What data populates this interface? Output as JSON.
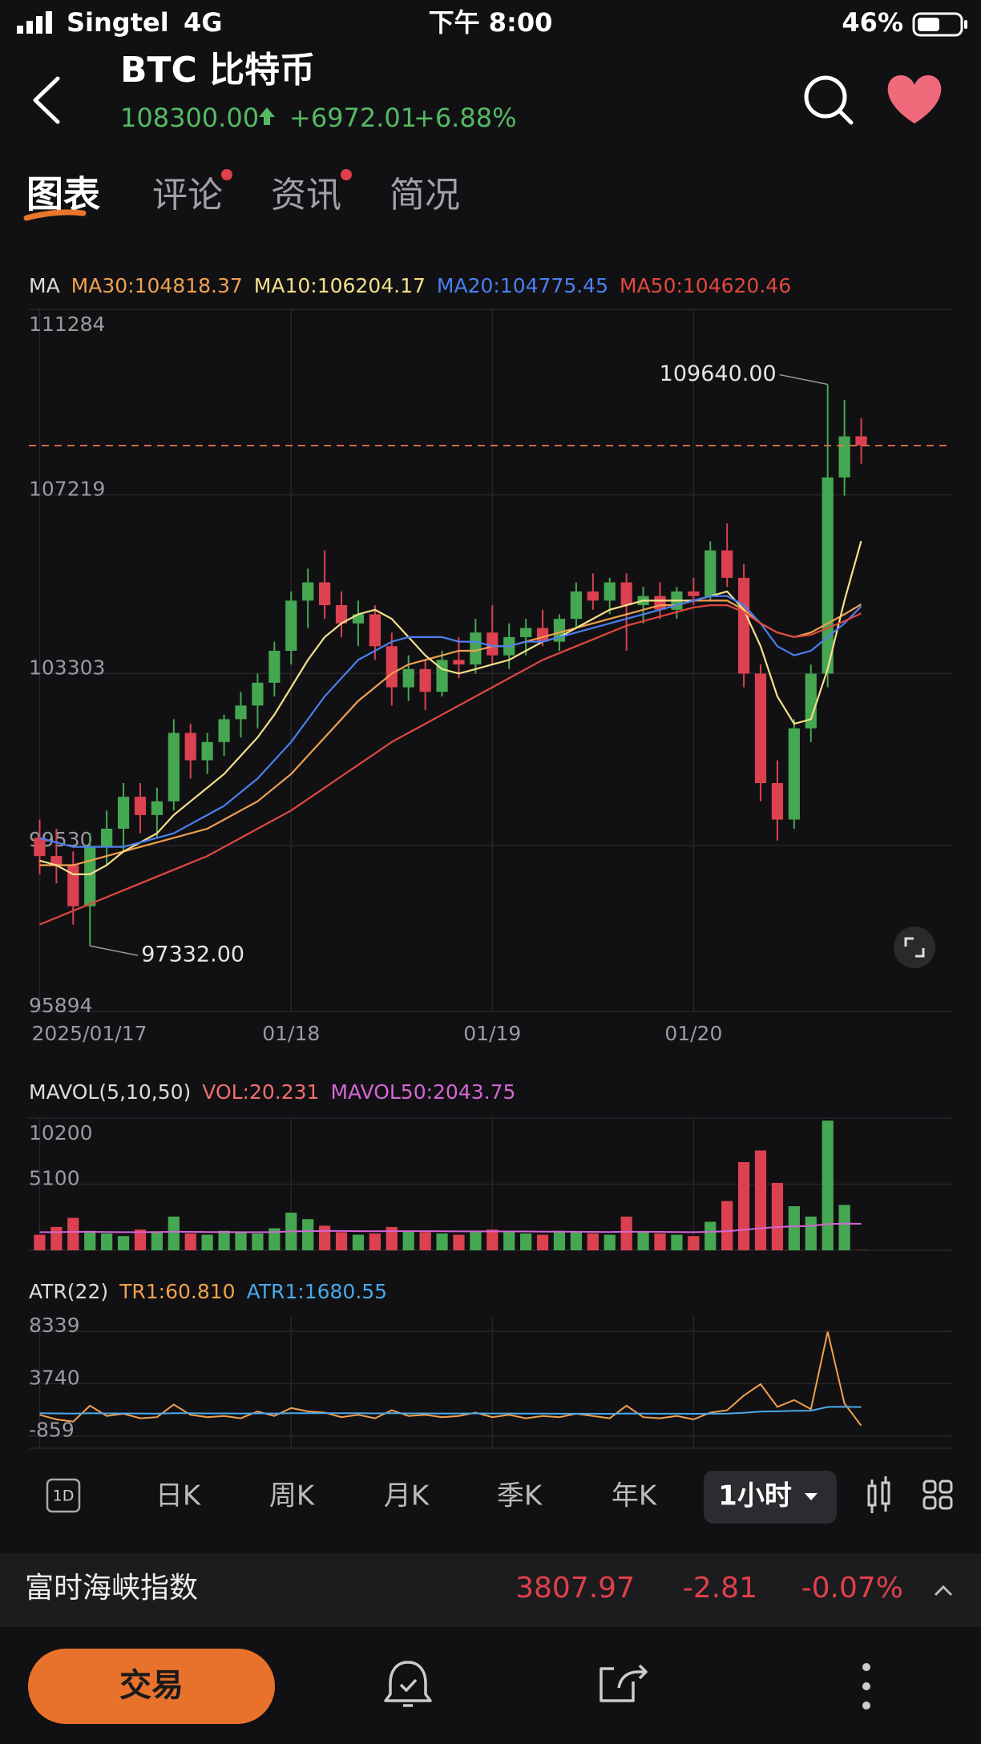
{
  "status_bar": {
    "carrier": "Singtel",
    "network": "4G",
    "time": "下午 8:00",
    "battery": "46%"
  },
  "header": {
    "title": "BTC 比特币",
    "price": "108300.00",
    "change": "+6972.01",
    "change_pct": "+6.88%"
  },
  "tabs": [
    "图表",
    "评论",
    "资讯",
    "简况"
  ],
  "chart_data": {
    "type": "candlestick",
    "ma_label": "MA",
    "series": [
      {
        "name": "MA30:104818.37",
        "color": "#f0a050",
        "values": [
          99100,
          99100,
          99100,
          99200,
          99300,
          99400,
          99500,
          99600,
          99700,
          99800,
          99900,
          100100,
          100300,
          100500,
          100800,
          101100,
          101500,
          101900,
          102300,
          102700,
          103000,
          103300,
          103500,
          103600,
          103700,
          103800,
          103800,
          103900,
          103900,
          104000,
          104100,
          104200,
          104300,
          104400,
          104500,
          104600,
          104700,
          104800,
          104800,
          104900,
          104900,
          104900,
          104700,
          104400,
          104200,
          104100,
          104200,
          104400,
          104600,
          104818.37
        ]
      },
      {
        "name": "MA10:106204.17",
        "color": "#f5e08a",
        "values": [
          99200,
          99100,
          98900,
          98900,
          99100,
          99400,
          99600,
          99800,
          100200,
          100500,
          100800,
          101100,
          101500,
          101900,
          102400,
          103000,
          103600,
          104100,
          104400,
          104600,
          104700,
          104500,
          104100,
          103700,
          103400,
          103300,
          103400,
          103500,
          103600,
          103800,
          104000,
          104100,
          104300,
          104500,
          104700,
          104800,
          104900,
          104900,
          104900,
          104900,
          105000,
          105100,
          104700,
          103900,
          102800,
          102200,
          102300,
          103400,
          104900,
          106204.17
        ]
      },
      {
        "name": "MA20:104775.45",
        "color": "#4a7ff0",
        "values": [
          99700,
          99600,
          99500,
          99500,
          99500,
          99500,
          99600,
          99700,
          99800,
          100000,
          100200,
          100400,
          100700,
          101000,
          101400,
          101800,
          102300,
          102800,
          103200,
          103600,
          103800,
          104000,
          104100,
          104100,
          104100,
          104000,
          104000,
          103900,
          103900,
          104000,
          104000,
          104100,
          104200,
          104300,
          104400,
          104500,
          104600,
          104700,
          104800,
          104900,
          105000,
          105000,
          104800,
          104400,
          103900,
          103700,
          103800,
          104100,
          104400,
          104775.45
        ]
      },
      {
        "name": "MA50:104620.46",
        "color": "#e0483f",
        "values": [
          97800,
          97950,
          98100,
          98250,
          98400,
          98550,
          98700,
          98850,
          99000,
          99150,
          99300,
          99500,
          99700,
          99900,
          100100,
          100300,
          100550,
          100800,
          101050,
          101300,
          101550,
          101800,
          102000,
          102200,
          102400,
          102600,
          102800,
          103000,
          103200,
          103400,
          103600,
          103750,
          103900,
          104050,
          104200,
          104350,
          104450,
          104550,
          104650,
          104750,
          104800,
          104800,
          104650,
          104400,
          104200,
          104100,
          104150,
          104300,
          104450,
          104620.46
        ]
      }
    ],
    "candles": [
      [
        99700,
        100100,
        98900,
        99300
      ],
      [
        99300,
        99900,
        98700,
        99100
      ],
      [
        99100,
        99400,
        97800,
        98200
      ],
      [
        98200,
        99800,
        97332,
        99500
      ],
      [
        99500,
        100300,
        99100,
        99900
      ],
      [
        99900,
        100900,
        99400,
        100600
      ],
      [
        100600,
        100900,
        99800,
        100200
      ],
      [
        100200,
        100800,
        99700,
        100500
      ],
      [
        100500,
        102300,
        100300,
        102000
      ],
      [
        102000,
        102200,
        101000,
        101400
      ],
      [
        101400,
        102000,
        101100,
        101800
      ],
      [
        101800,
        102400,
        101500,
        102300
      ],
      [
        102300,
        102900,
        101900,
        102600
      ],
      [
        102600,
        103300,
        102100,
        103100
      ],
      [
        103100,
        104000,
        102800,
        103800
      ],
      [
        103800,
        105100,
        103500,
        104900
      ],
      [
        104900,
        105600,
        104300,
        105300
      ],
      [
        105300,
        106000,
        104500,
        104800
      ],
      [
        104800,
        105100,
        104100,
        104400
      ],
      [
        104400,
        104900,
        103900,
        104600
      ],
      [
        104600,
        104800,
        103600,
        103900
      ],
      [
        103900,
        104200,
        102600,
        103000
      ],
      [
        103000,
        103700,
        102700,
        103400
      ],
      [
        103400,
        103600,
        102500,
        102900
      ],
      [
        102900,
        103800,
        102800,
        103600
      ],
      [
        103600,
        104100,
        103200,
        103500
      ],
      [
        103500,
        104500,
        103300,
        104200
      ],
      [
        104200,
        104800,
        103500,
        103700
      ],
      [
        103700,
        104400,
        103400,
        104100
      ],
      [
        104100,
        104500,
        103700,
        104300
      ],
      [
        104300,
        104700,
        103900,
        104000
      ],
      [
        104000,
        104600,
        103800,
        104500
      ],
      [
        104500,
        105300,
        104300,
        105100
      ],
      [
        105100,
        105500,
        104700,
        104900
      ],
      [
        104900,
        105400,
        104600,
        105300
      ],
      [
        105300,
        105500,
        103800,
        104800
      ],
      [
        104800,
        105200,
        104400,
        105000
      ],
      [
        105000,
        105300,
        104500,
        104700
      ],
      [
        104700,
        105200,
        104500,
        105100
      ],
      [
        105100,
        105400,
        104800,
        105000
      ],
      [
        105000,
        106200,
        104900,
        106000
      ],
      [
        106000,
        106590,
        105200,
        105400
      ],
      [
        105400,
        105700,
        103000,
        103300
      ],
      [
        103300,
        103500,
        100500,
        100900
      ],
      [
        100900,
        101400,
        99640,
        100100
      ],
      [
        100100,
        102300,
        99900,
        102100
      ],
      [
        102100,
        103500,
        101800,
        103300
      ],
      [
        103300,
        109640,
        103000,
        107600
      ],
      [
        107600,
        109300,
        107200,
        108500
      ],
      [
        108500,
        108900,
        107900,
        108300
      ]
    ],
    "up_color": "#46a752",
    "down_color": "#dc4150",
    "ylim": [
      95894,
      111284
    ],
    "yticks": [
      111284,
      107219,
      103303,
      99530,
      95894
    ],
    "xticks": [
      {
        "value": 0,
        "label": "2025/01/17"
      },
      {
        "value": 15,
        "label": "01/18"
      },
      {
        "value": 27,
        "label": "01/19"
      },
      {
        "value": 39,
        "label": "01/20"
      }
    ],
    "last_price": 108300,
    "annotations": [
      {
        "value": 109640,
        "label": "109640.00"
      },
      {
        "value": 97332,
        "label": "97332.00"
      }
    ],
    "volume": {
      "legend_title": "MAVOL(5,10,50)",
      "series": [
        {
          "name": "VOL:20.231",
          "color": "#ee6e6e",
          "values": [
            1200,
            1800,
            2500,
            1500,
            1300,
            1100,
            1600,
            1400,
            2600,
            1300,
            1200,
            1500,
            1400,
            1300,
            1700,
            2900,
            2400,
            1900,
            1400,
            1200,
            1300,
            1800,
            1500,
            1400,
            1300,
            1200,
            1500,
            1600,
            1400,
            1300,
            1200,
            1500,
            1400,
            1300,
            1200,
            2600,
            1400,
            1300,
            1200,
            1100,
            2200,
            3800,
            6800,
            7700,
            5200,
            3400,
            2600,
            10000,
            3500,
            20.231
          ]
        },
        {
          "name": "MAVOL50:2043.75",
          "color": "#d466d6",
          "values": [
            1400,
            1400,
            1420,
            1420,
            1410,
            1400,
            1400,
            1410,
            1430,
            1420,
            1410,
            1410,
            1400,
            1400,
            1410,
            1450,
            1480,
            1490,
            1490,
            1480,
            1470,
            1480,
            1480,
            1480,
            1470,
            1460,
            1460,
            1460,
            1450,
            1450,
            1440,
            1440,
            1430,
            1420,
            1410,
            1430,
            1430,
            1420,
            1410,
            1400,
            1420,
            1470,
            1580,
            1700,
            1790,
            1850,
            1880,
            2030,
            2060,
            2043.75
          ]
        }
      ],
      "ylim": [
        0,
        10200
      ],
      "yticks": [
        10200,
        5100
      ]
    },
    "atr": {
      "legend_title": "ATR(22)",
      "series": [
        {
          "name": "TR1:60.810",
          "color": "#f0a050",
          "values": [
            1000,
            600,
            400,
            1800,
            900,
            1100,
            700,
            800,
            1900,
            1000,
            800,
            900,
            700,
            1300,
            900,
            1600,
            1300,
            1200,
            800,
            1000,
            700,
            1400,
            900,
            1000,
            800,
            900,
            1200,
            800,
            1000,
            700,
            900,
            800,
            1100,
            900,
            700,
            1800,
            800,
            700,
            900,
            600,
            1200,
            1400,
            2700,
            3700,
            1700,
            2300,
            1500,
            8300,
            2000,
            60.81
          ]
        },
        {
          "name": "ATR1:1680.55",
          "color": "#4aa8e8",
          "values": [
            1150,
            1130,
            1110,
            1140,
            1130,
            1130,
            1120,
            1110,
            1140,
            1140,
            1130,
            1130,
            1120,
            1130,
            1120,
            1140,
            1150,
            1150,
            1140,
            1140,
            1130,
            1140,
            1130,
            1130,
            1120,
            1120,
            1130,
            1120,
            1120,
            1110,
            1110,
            1100,
            1100,
            1100,
            1090,
            1120,
            1110,
            1100,
            1100,
            1090,
            1100,
            1110,
            1180,
            1290,
            1310,
            1360,
            1370,
            1690,
            1710,
            1680.55
          ]
        }
      ],
      "ylim": [
        -1935,
        9611
      ],
      "yticks": [
        8339,
        3740,
        -859
      ]
    }
  },
  "toolbar": {
    "icon_label": "1D",
    "periods": [
      "日K",
      "周K",
      "月K",
      "季K",
      "年K"
    ],
    "selected": "1小时"
  },
  "index_bar": {
    "name": "富时海峡指数",
    "value": "3807.97",
    "change": "-2.81",
    "change_pct": "-0.07%"
  },
  "actions": {
    "trade": "交易"
  }
}
